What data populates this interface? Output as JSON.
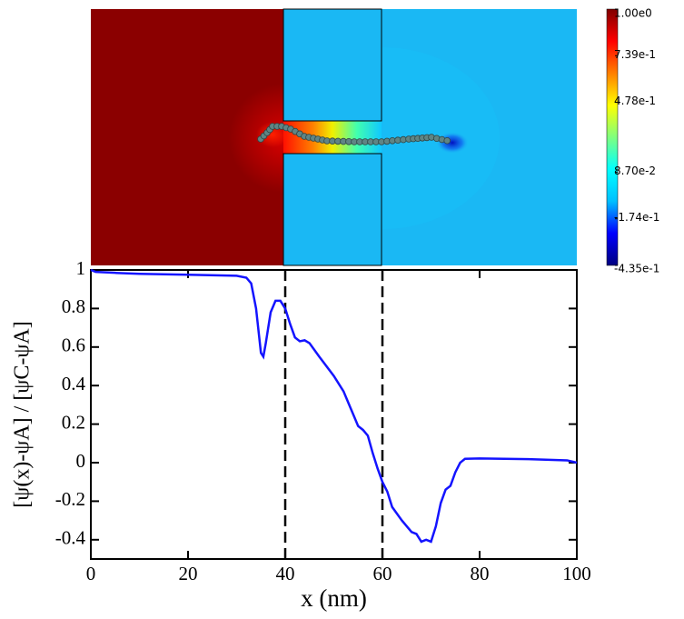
{
  "chart_data": [
    {
      "type": "colormap",
      "clim": [
        -0.435,
        1.0
      ],
      "colors": [
        "#00007f",
        "#0000ff",
        "#00bfff",
        "#00ffff",
        "#7fff7f",
        "#ffff00",
        "#ff7f00",
        "#ff0000",
        "#7f0000"
      ],
      "colorbar_ticks": [
        {
          "value": 1.0,
          "label": "1.00e0"
        },
        {
          "value": 0.739,
          "label": "7.39e-1"
        },
        {
          "value": 0.478,
          "label": "4.78e-1"
        },
        {
          "value": 0.087,
          "label": "8.70e-2"
        },
        {
          "value": -0.174,
          "label": "-1.74e-1"
        },
        {
          "value": -0.435,
          "label": "-4.35e-1"
        }
      ]
    },
    {
      "type": "line",
      "xlabel": "x (nm)",
      "ylabel": "[ψ(x)-ψA] / [ψC-ψA]",
      "color": "#1414ff",
      "x": [
        0,
        1,
        5,
        10,
        20,
        30,
        32,
        33,
        34,
        35,
        35.5,
        36,
        37,
        38,
        39,
        40,
        41,
        42,
        43,
        44,
        45,
        47,
        50,
        52,
        54,
        55,
        56,
        57,
        58,
        59,
        60,
        61,
        62,
        64,
        66,
        67,
        68,
        69,
        70,
        71,
        72,
        73,
        74,
        75,
        76,
        77,
        80,
        90,
        98,
        100
      ],
      "values": [
        1.0,
        0.99,
        0.985,
        0.98,
        0.975,
        0.97,
        0.96,
        0.93,
        0.8,
        0.57,
        0.55,
        0.62,
        0.78,
        0.84,
        0.84,
        0.8,
        0.72,
        0.65,
        0.63,
        0.635,
        0.62,
        0.55,
        0.45,
        0.37,
        0.25,
        0.19,
        0.17,
        0.14,
        0.05,
        -0.03,
        -0.1,
        -0.15,
        -0.23,
        -0.3,
        -0.36,
        -0.37,
        -0.41,
        -0.4,
        -0.41,
        -0.33,
        -0.21,
        -0.14,
        -0.12,
        -0.05,
        0.0,
        0.02,
        0.022,
        0.018,
        0.012,
        0.0
      ],
      "xlim": [
        0,
        100
      ],
      "xticks": [
        0,
        20,
        40,
        60,
        80,
        100
      ],
      "ylim": [
        -0.5,
        1
      ],
      "yticks": [
        -0.4,
        -0.2,
        0,
        0.2,
        0.4,
        0.6,
        0.8,
        1
      ],
      "vlines": [
        40,
        60
      ]
    }
  ]
}
